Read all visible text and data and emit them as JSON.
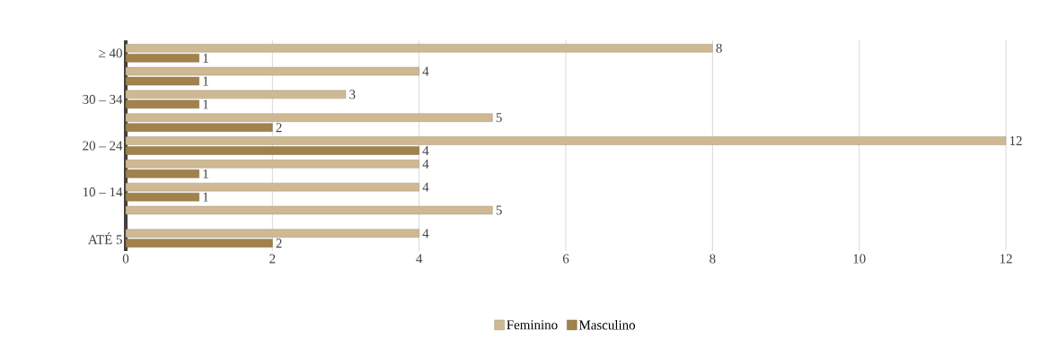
{
  "chart_data": {
    "type": "bar",
    "orientation": "horizontal",
    "categories": [
      "≥ 40",
      null,
      "30 – 34",
      null,
      "20 – 24",
      null,
      "10 – 14",
      null,
      "ATÉ 5"
    ],
    "series": [
      {
        "name": "Feminino",
        "color": "#cfb993",
        "values": [
          8,
          4,
          3,
          5,
          12,
          4,
          4,
          5,
          4
        ]
      },
      {
        "name": "Masculino",
        "color": "#a0824a",
        "values": [
          1,
          1,
          1,
          2,
          4,
          1,
          1,
          null,
          2
        ]
      }
    ],
    "xlim": [
      0,
      12
    ],
    "xticks": [
      0,
      2,
      4,
      6,
      8,
      10,
      12
    ],
    "grid": "x",
    "legend": "bottom",
    "data_labels": true
  }
}
